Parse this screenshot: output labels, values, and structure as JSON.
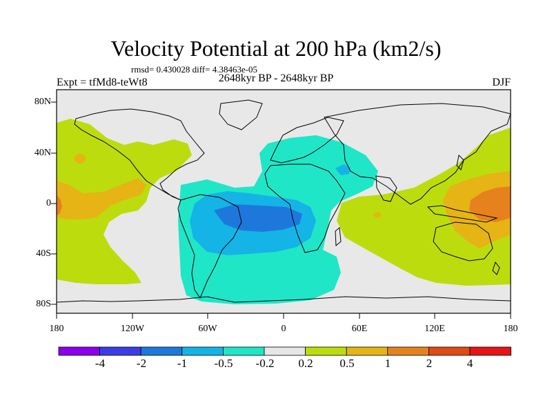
{
  "title": "Velocity Potential at 200 hPa (km2/s)",
  "stats": "rmsd= 0.430028 diff= 4.38463e-05",
  "experiment": "Expt = tfMd8-teWt8",
  "period": "2648kyr BP - 2648kyr BP",
  "season": "DJF",
  "colors": {
    "land_mid": "#e8e8e8",
    "levels": [
      "#8a00ee",
      "#3c3ce6",
      "#1e78dc",
      "#14b4e6",
      "#20e6c8",
      "#e6e6e6",
      "#bcdc0e",
      "#e6b414",
      "#e6821e",
      "#e04a14",
      "#e61414"
    ]
  },
  "map": {
    "lon_ticks": [
      "180",
      "120W",
      "60W",
      "0",
      "60E",
      "120E",
      "180"
    ],
    "lat_ticks": [
      "80N",
      "40N",
      "0",
      "40S",
      "80S"
    ]
  },
  "colorbar": {
    "labels": [
      "-4",
      "-2",
      "-1",
      "-0.5",
      "-0.2",
      "0.2",
      "0.5",
      "1",
      "2",
      "4"
    ]
  }
}
